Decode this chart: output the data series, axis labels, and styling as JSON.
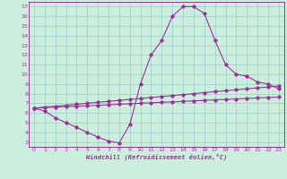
{
  "title": "",
  "xlabel": "Windchill (Refroidissement éolien,°C)",
  "bg_color": "#cceedd",
  "line_color": "#993399",
  "grid_color": "#99cccc",
  "xlim": [
    -0.5,
    23.5
  ],
  "ylim": [
    2.5,
    17.5
  ],
  "yticks": [
    3,
    4,
    5,
    6,
    7,
    8,
    9,
    10,
    11,
    12,
    13,
    14,
    15,
    16,
    17
  ],
  "xticks": [
    0,
    1,
    2,
    3,
    4,
    5,
    6,
    7,
    8,
    9,
    10,
    11,
    12,
    13,
    14,
    15,
    16,
    17,
    18,
    19,
    20,
    21,
    22,
    23
  ],
  "curve1_x": [
    0,
    1,
    2,
    3,
    4,
    5,
    6,
    7,
    8,
    9,
    10,
    11,
    12,
    13,
    14,
    15,
    16,
    17,
    18,
    19,
    20,
    21,
    22,
    23
  ],
  "curve1_y": [
    6.5,
    6.2,
    5.5,
    5.0,
    4.5,
    4.0,
    3.5,
    3.1,
    2.9,
    4.8,
    9.0,
    12.0,
    13.5,
    16.0,
    17.0,
    17.0,
    16.3,
    13.5,
    11.0,
    10.0,
    9.8,
    9.2,
    9.0,
    8.5
  ],
  "line2_x": [
    0,
    1,
    2,
    3,
    4,
    5,
    6,
    7,
    8,
    9,
    10,
    11,
    12,
    13,
    14,
    15,
    16,
    17,
    18,
    19,
    20,
    21,
    22,
    23
  ],
  "line2_y": [
    6.5,
    6.6,
    6.7,
    6.8,
    6.9,
    7.0,
    7.1,
    7.2,
    7.3,
    7.4,
    7.5,
    7.6,
    7.7,
    7.8,
    7.9,
    8.0,
    8.1,
    8.2,
    8.3,
    8.4,
    8.5,
    8.6,
    8.7,
    8.8
  ],
  "line3_x": [
    0,
    1,
    2,
    3,
    4,
    5,
    6,
    7,
    8,
    9,
    10,
    11,
    12,
    13,
    14,
    15,
    16,
    17,
    18,
    19,
    20,
    21,
    22,
    23
  ],
  "line3_y": [
    6.5,
    6.55,
    6.6,
    6.65,
    6.7,
    6.75,
    6.8,
    6.85,
    6.9,
    6.95,
    7.0,
    7.05,
    7.1,
    7.15,
    7.2,
    7.25,
    7.3,
    7.35,
    7.4,
    7.45,
    7.5,
    7.55,
    7.6,
    7.65
  ]
}
